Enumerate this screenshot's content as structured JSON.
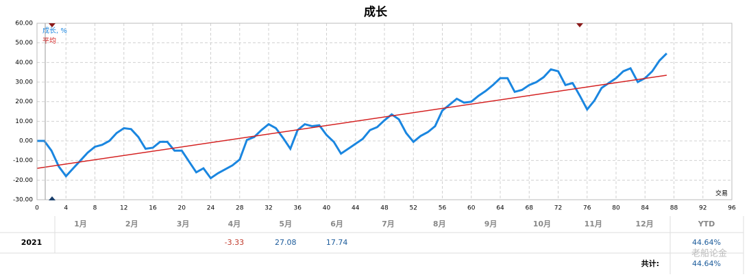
{
  "chart_data": {
    "type": "line",
    "title": "成长",
    "x_label": "交易",
    "xlim": [
      0,
      96
    ],
    "xticks": [
      0,
      4,
      8,
      12,
      16,
      20,
      24,
      28,
      32,
      36,
      40,
      44,
      48,
      52,
      56,
      60,
      64,
      68,
      72,
      76,
      80,
      84,
      88,
      92,
      96
    ],
    "ylim": [
      -30,
      60
    ],
    "yticks": [
      {
        "value": -30,
        "label": "-30.00"
      },
      {
        "value": -20,
        "label": "-20.00"
      },
      {
        "value": -10,
        "label": "-10.00"
      },
      {
        "value": 0,
        "label": "0.00"
      },
      {
        "value": 10,
        "label": "10.00"
      },
      {
        "value": 20,
        "label": "20.00"
      },
      {
        "value": 30,
        "label": "30.00"
      },
      {
        "value": 40,
        "label": "40.00"
      },
      {
        "value": 50,
        "label": "50.00"
      },
      {
        "value": 60,
        "label": "60.00"
      }
    ],
    "grid": true,
    "series": [
      {
        "name": "成长, %",
        "color": "#1a86e0",
        "x": [
          0,
          1,
          2,
          3,
          4,
          5,
          6,
          7,
          8,
          9,
          10,
          11,
          12,
          13,
          14,
          15,
          16,
          17,
          18,
          19,
          20,
          21,
          22,
          23,
          24,
          25,
          26,
          27,
          28,
          29,
          30,
          31,
          32,
          33,
          34,
          35,
          36,
          37,
          38,
          39,
          40,
          41,
          42,
          43,
          44,
          45,
          46,
          47,
          48,
          49,
          50,
          51,
          52,
          53,
          54,
          55,
          56,
          57,
          58,
          59,
          60,
          61,
          62,
          63,
          64,
          65,
          66,
          67,
          68,
          69,
          70,
          71,
          72,
          73,
          74,
          75,
          76,
          77,
          78,
          79,
          80,
          81,
          82,
          83,
          84,
          85,
          86,
          87
        ],
        "values": [
          0,
          0,
          -5,
          -13,
          -18,
          -14,
          -10,
          -6,
          -3,
          -2,
          0,
          4,
          6.5,
          6,
          2,
          -4,
          -3.5,
          -0.5,
          -0.5,
          -5,
          -5,
          -10.5,
          -16,
          -14,
          -19,
          -16.5,
          -14.5,
          -12.5,
          -9.5,
          0.5,
          2,
          5.5,
          8.5,
          6.5,
          1.5,
          -4,
          5.5,
          8.5,
          7.5,
          8,
          3,
          -0.5,
          -6.5,
          -4,
          -1.5,
          1,
          5.5,
          7,
          10.5,
          13.5,
          11,
          4,
          -0.5,
          2.5,
          4.5,
          7.5,
          15.5,
          18.5,
          21.5,
          19.5,
          20,
          23,
          25.5,
          28.5,
          32,
          32,
          25,
          26,
          28.5,
          30,
          32.5,
          36.5,
          35.5,
          28.5,
          29.5,
          23,
          16,
          20.5,
          27,
          29.5,
          32,
          35.5,
          37,
          30,
          32,
          35.5,
          41,
          44.6
        ]
      },
      {
        "name": "平均",
        "color": "#d42020",
        "x": [
          0,
          87
        ],
        "values": [
          -14,
          33.5
        ]
      }
    ]
  },
  "table": {
    "columns": [
      "1月",
      "2月",
      "3月",
      "4月",
      "5月",
      "6月",
      "7月",
      "8月",
      "9月",
      "10月",
      "11月",
      "12月"
    ],
    "ytd_header": "YTD",
    "rows": [
      {
        "label": "2021",
        "cells": [
          null,
          null,
          null,
          -3.33,
          27.08,
          17.74,
          null,
          null,
          null,
          null,
          null,
          null
        ],
        "ytd": "44.64%"
      }
    ],
    "total_label": "共计:",
    "total": "44.64%"
  },
  "watermark": "老船论金"
}
